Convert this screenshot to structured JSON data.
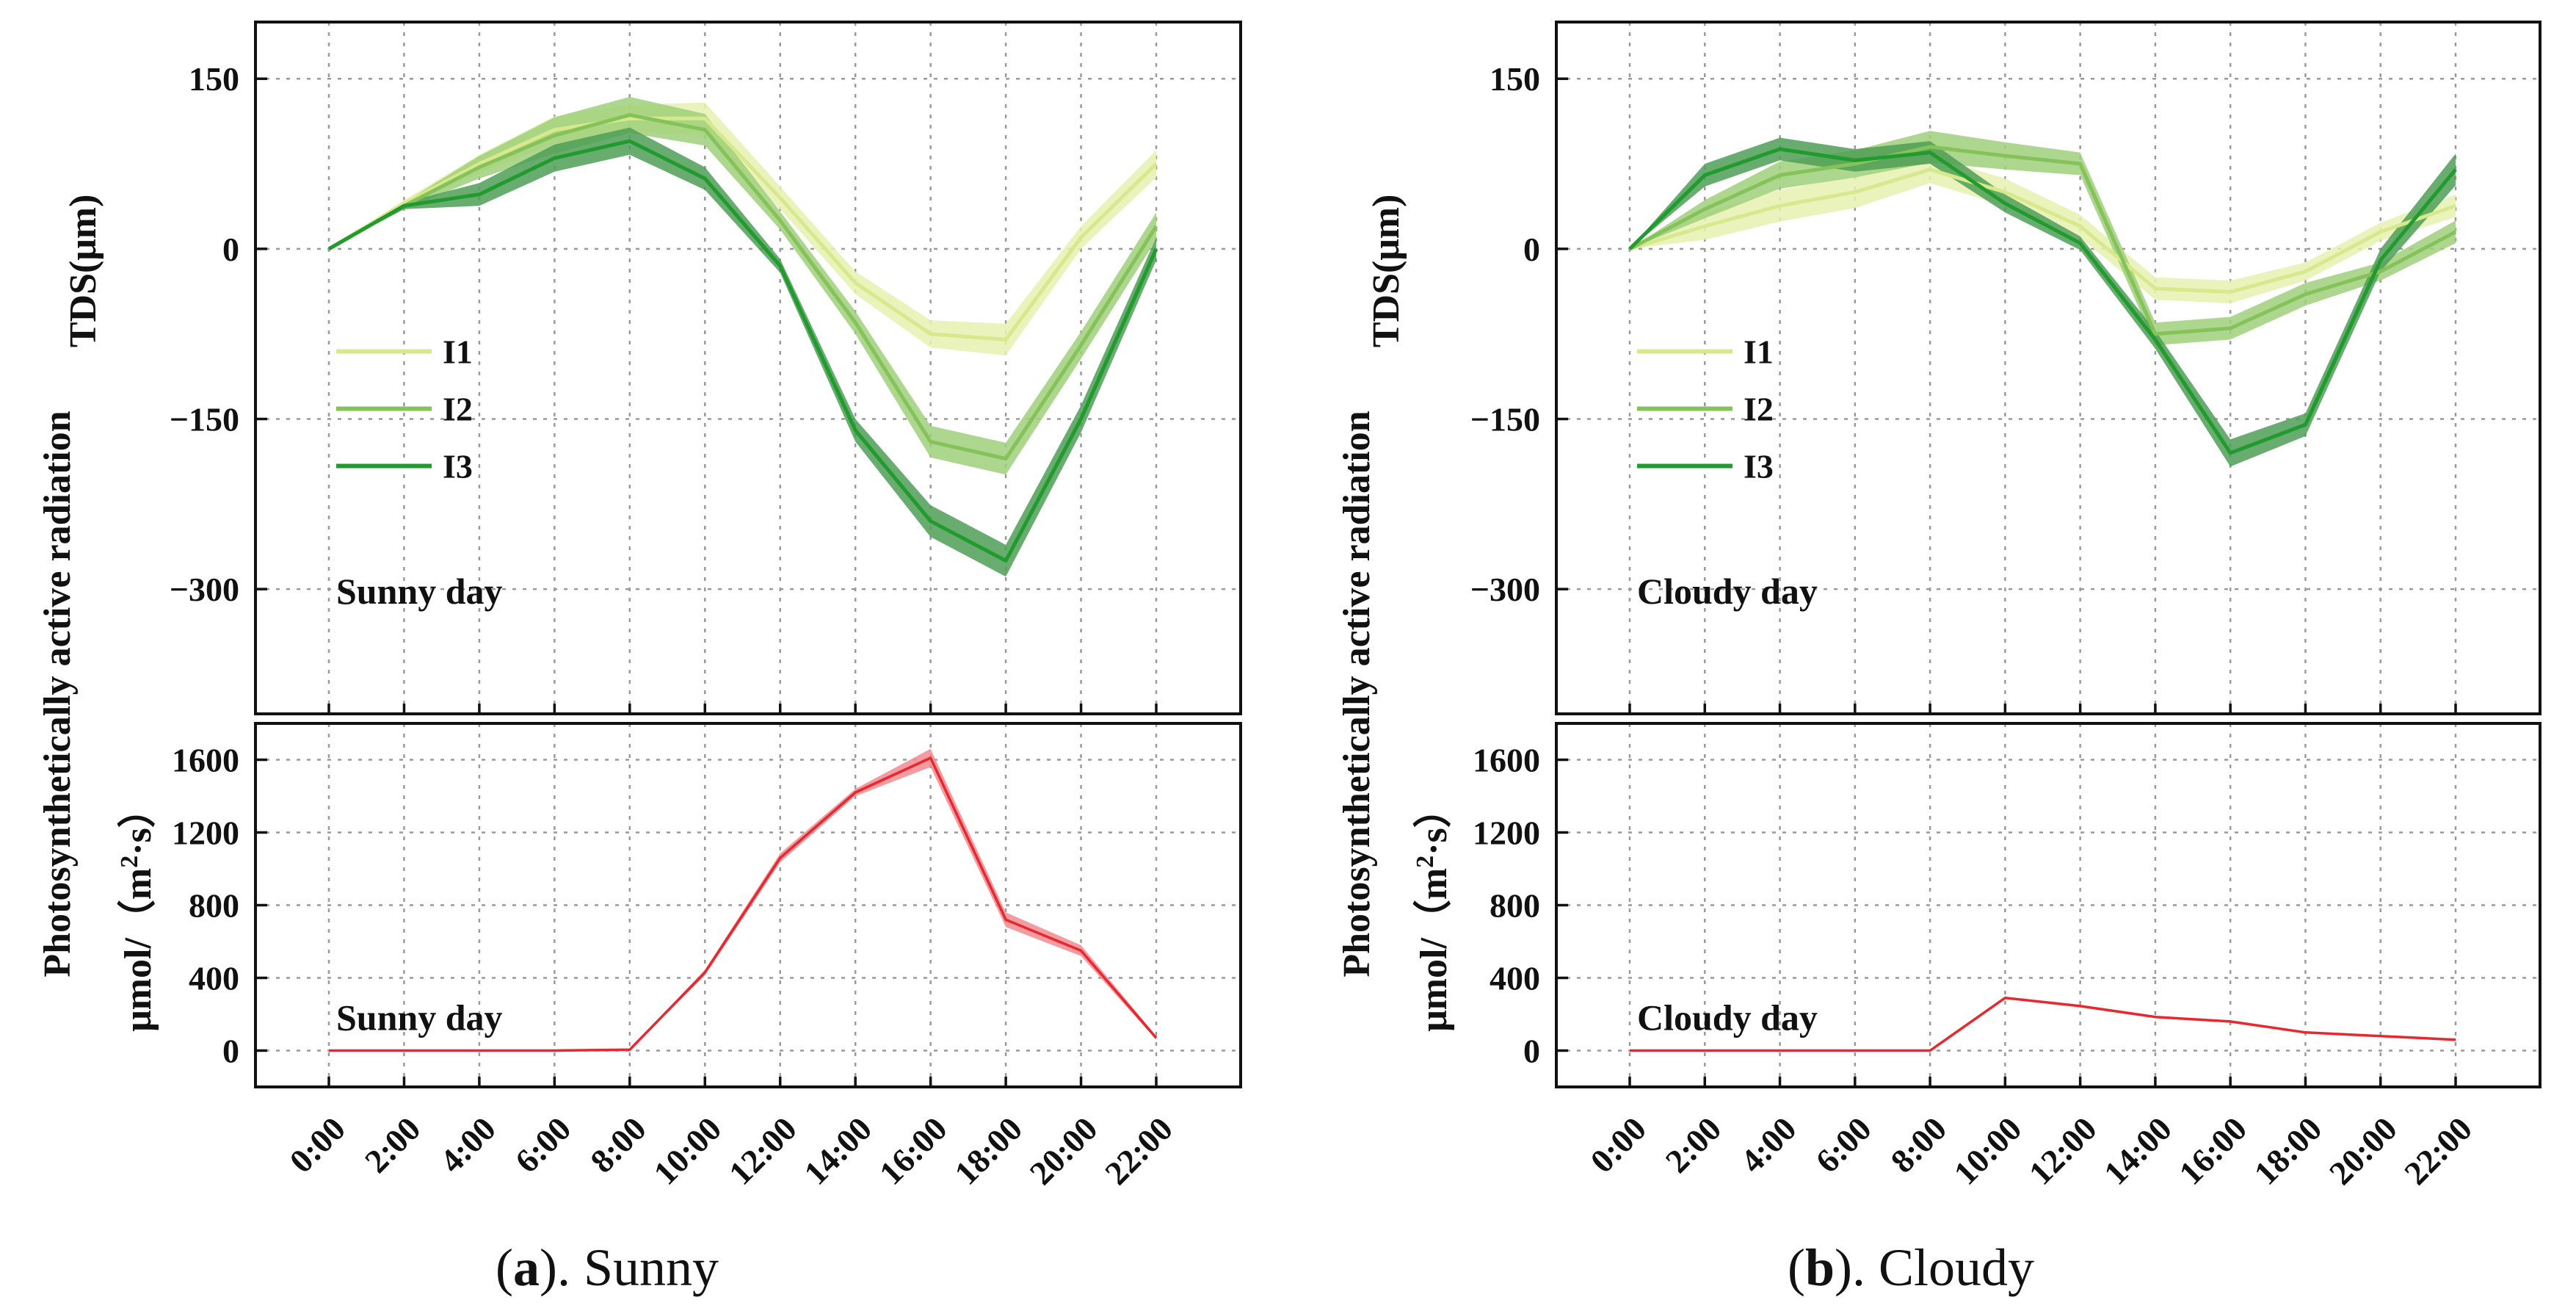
{
  "chart_data": [
    {
      "type": "line",
      "panel": "a",
      "title": "Sunny day",
      "ylabel": "TDS(μm)",
      "ylim": [
        -410,
        200
      ],
      "yticks": [
        150,
        0,
        -150,
        -300
      ],
      "ytick_labels": [
        "150",
        "0",
        "−150",
        "−300"
      ],
      "categories": [
        "0:00",
        "2:00",
        "4:00",
        "6:00",
        "8:00",
        "10:00",
        "12:00",
        "14:00",
        "16:00",
        "18:00",
        "20:00",
        "22:00"
      ],
      "legend": [
        "I1",
        "I2",
        "I3"
      ],
      "series": [
        {
          "name": "I1",
          "color": "#d7e98c",
          "band_color": "#e6f1b0",
          "values": [
            0,
            40,
            75,
            105,
            115,
            115,
            45,
            -30,
            -75,
            -80,
            10,
            75
          ],
          "band": [
            0,
            3,
            8,
            12,
            12,
            14,
            10,
            10,
            12,
            14,
            10,
            12
          ]
        },
        {
          "name": "I2",
          "color": "#86c25a",
          "band_color": "#9fd07a",
          "values": [
            0,
            38,
            72,
            100,
            118,
            105,
            25,
            -65,
            -170,
            -185,
            -85,
            20
          ],
          "band": [
            0,
            3,
            10,
            16,
            16,
            14,
            8,
            10,
            14,
            14,
            12,
            12
          ]
        },
        {
          "name": "I3",
          "color": "#219a2e",
          "band_color": "#4f9d56",
          "values": [
            0,
            38,
            48,
            80,
            95,
            62,
            -15,
            -160,
            -240,
            -275,
            -150,
            0
          ],
          "band": [
            0,
            3,
            10,
            12,
            12,
            10,
            6,
            10,
            14,
            14,
            12,
            10
          ]
        }
      ]
    },
    {
      "type": "line",
      "panel": "a",
      "title": "Sunny day",
      "ylabel": "Photosynthetically active radiation μmol/（m²·s）",
      "ylim": [
        -200,
        1800
      ],
      "yticks": [
        1600,
        1200,
        800,
        400,
        0
      ],
      "ytick_labels": [
        "1600",
        "1200",
        "800",
        "400",
        "0"
      ],
      "categories": [
        "0:00",
        "2:00",
        "4:00",
        "6:00",
        "8:00",
        "10:00",
        "12:00",
        "14:00",
        "16:00",
        "18:00",
        "20:00",
        "22:00"
      ],
      "series": [
        {
          "name": "PAR",
          "color": "#e8272e",
          "band_color": "#f08a8f",
          "values": [
            0,
            0,
            0,
            0,
            5,
            430,
            1060,
            1420,
            1610,
            720,
            550,
            70
          ],
          "band": [
            0,
            0,
            0,
            0,
            3,
            15,
            25,
            20,
            50,
            40,
            30,
            10
          ]
        }
      ]
    },
    {
      "type": "line",
      "panel": "b",
      "title": "Cloudy day",
      "ylabel": "TDS(μm)",
      "ylim": [
        -410,
        200
      ],
      "yticks": [
        150,
        0,
        -150,
        -300
      ],
      "ytick_labels": [
        "150",
        "0",
        "−150",
        "−300"
      ],
      "categories": [
        "0:00",
        "2:00",
        "4:00",
        "6:00",
        "8:00",
        "10:00",
        "12:00",
        "14:00",
        "16:00",
        "18:00",
        "20:00",
        "22:00"
      ],
      "legend": [
        "I1",
        "I2",
        "I3"
      ],
      "series": [
        {
          "name": "I1",
          "color": "#d7e98c",
          "band_color": "#e6f1b0",
          "values": [
            0,
            20,
            38,
            50,
            70,
            50,
            20,
            -35,
            -38,
            -20,
            15,
            38
          ],
          "band": [
            0,
            12,
            14,
            14,
            12,
            12,
            10,
            10,
            10,
            8,
            8,
            10
          ]
        },
        {
          "name": "I2",
          "color": "#86c25a",
          "band_color": "#9fd07a",
          "values": [
            0,
            35,
            65,
            75,
            90,
            82,
            75,
            -75,
            -70,
            -40,
            -20,
            15
          ],
          "band": [
            0,
            8,
            12,
            12,
            14,
            12,
            10,
            10,
            10,
            10,
            8,
            10
          ]
        },
        {
          "name": "I3",
          "color": "#219a2e",
          "band_color": "#4f9d56",
          "values": [
            0,
            65,
            88,
            78,
            85,
            40,
            5,
            -80,
            -180,
            -155,
            -10,
            70
          ],
          "band": [
            0,
            10,
            10,
            10,
            10,
            8,
            6,
            8,
            12,
            10,
            10,
            14
          ]
        }
      ]
    },
    {
      "type": "line",
      "panel": "b",
      "title": "Cloudy day",
      "ylabel": "Photosynthetically active radiation μmol/（m²·s）",
      "ylim": [
        -200,
        1800
      ],
      "yticks": [
        1600,
        1200,
        800,
        400,
        0
      ],
      "ytick_labels": [
        "1600",
        "1200",
        "800",
        "400",
        "0"
      ],
      "categories": [
        "0:00",
        "2:00",
        "4:00",
        "6:00",
        "8:00",
        "10:00",
        "12:00",
        "14:00",
        "16:00",
        "18:00",
        "20:00",
        "22:00"
      ],
      "series": [
        {
          "name": "PAR",
          "color": "#e8272e",
          "band_color": "#f08a8f",
          "values": [
            0,
            0,
            0,
            0,
            0,
            290,
            245,
            185,
            160,
            100,
            80,
            60
          ],
          "band": [
            0,
            0,
            0,
            0,
            0,
            6,
            6,
            5,
            5,
            4,
            4,
            4
          ]
        }
      ]
    }
  ],
  "left_axis_title": {
    "line1": "Photosynthetically active radiation",
    "line2_prefix": "μmol/（m",
    "line2_sup": "2",
    "line2_suffix": "·s）"
  },
  "captions": {
    "a": {
      "label": "a",
      "prefix": "(",
      "suffix": "). Sunny"
    },
    "b": {
      "label": "b",
      "prefix": "(",
      "suffix": "). Cloudy"
    }
  }
}
